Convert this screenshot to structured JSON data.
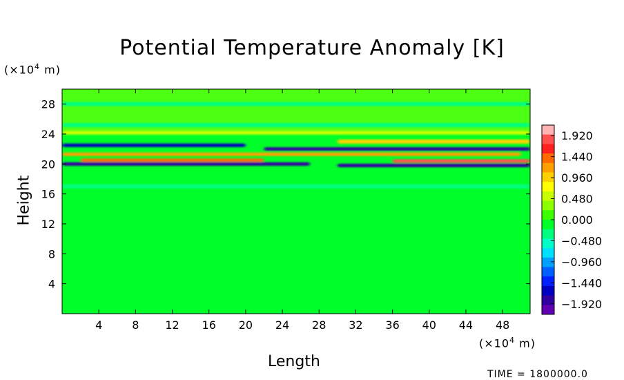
{
  "chart_data": {
    "type": "heatmap",
    "title": "Potential Temperature Anomaly [K]",
    "xlabel": "Length",
    "ylabel": "Height",
    "x_unit": "(×10⁴ m)",
    "y_unit": "(×10⁴ m)",
    "x_unit_base": "(×10",
    "x_unit_exp": "4",
    "x_unit_suffix": " m)",
    "y_unit_base": "(×10",
    "y_unit_exp": "4",
    "y_unit_suffix": " m)",
    "xlim": [
      0,
      51
    ],
    "ylim": [
      0,
      30
    ],
    "x_ticks": [
      "4",
      "8",
      "12",
      "16",
      "20",
      "24",
      "28",
      "32",
      "36",
      "40",
      "44",
      "48"
    ],
    "y_ticks": [
      "4",
      "8",
      "12",
      "16",
      "20",
      "24",
      "28"
    ],
    "colorbar": {
      "min": -2.16,
      "max": 2.16,
      "labels": [
        "1.920",
        "1.440",
        "0.960",
        "0.480",
        "0.000",
        "−0.480",
        "−0.960",
        "−1.440",
        "−1.920"
      ],
      "label_values": [
        1.92,
        1.44,
        0.96,
        0.48,
        0.0,
        -0.48,
        -0.96,
        -1.44,
        -1.92
      ],
      "colors": [
        "#ffb4b4",
        "#ff5050",
        "#ff2020",
        "#ff6a00",
        "#ffa000",
        "#ffd000",
        "#ffff00",
        "#c8ff00",
        "#8cff00",
        "#3cff00",
        "#00ff28",
        "#00ff80",
        "#00ffc8",
        "#00e0ff",
        "#00a0ff",
        "#0060ff",
        "#0020ff",
        "#0000c0",
        "#3000a0",
        "#6000b0"
      ]
    },
    "bands": [
      {
        "y": 20.0,
        "x_start": 0,
        "x_end": 27,
        "value": -1.9
      },
      {
        "y": 20.5,
        "x_start": 2,
        "x_end": 22,
        "value": 1.5
      },
      {
        "y": 21.3,
        "x_start": 0,
        "x_end": 50,
        "value": 1.2
      },
      {
        "y": 22.0,
        "x_start": 22,
        "x_end": 51,
        "value": -1.8
      },
      {
        "y": 22.5,
        "x_start": 0,
        "x_end": 20,
        "value": -1.6
      },
      {
        "y": 19.8,
        "x_start": 30,
        "x_end": 51,
        "value": -1.8
      },
      {
        "y": 20.4,
        "x_start": 36,
        "x_end": 51,
        "value": 1.8
      },
      {
        "y": 23.0,
        "x_start": 30,
        "x_end": 51,
        "value": 0.9
      },
      {
        "y": 24.2,
        "x_start": 0,
        "x_end": 51,
        "value": 0.6
      },
      {
        "y": 25.2,
        "x_start": 0,
        "x_end": 51,
        "value": -0.4
      },
      {
        "y": 17.0,
        "x_start": 0,
        "x_end": 51,
        "value": -0.25
      },
      {
        "y": 28.0,
        "x_start": 0,
        "x_end": 51,
        "value": -0.3
      }
    ]
  },
  "footer": {
    "time_label": "TIME = 1800000.0"
  }
}
